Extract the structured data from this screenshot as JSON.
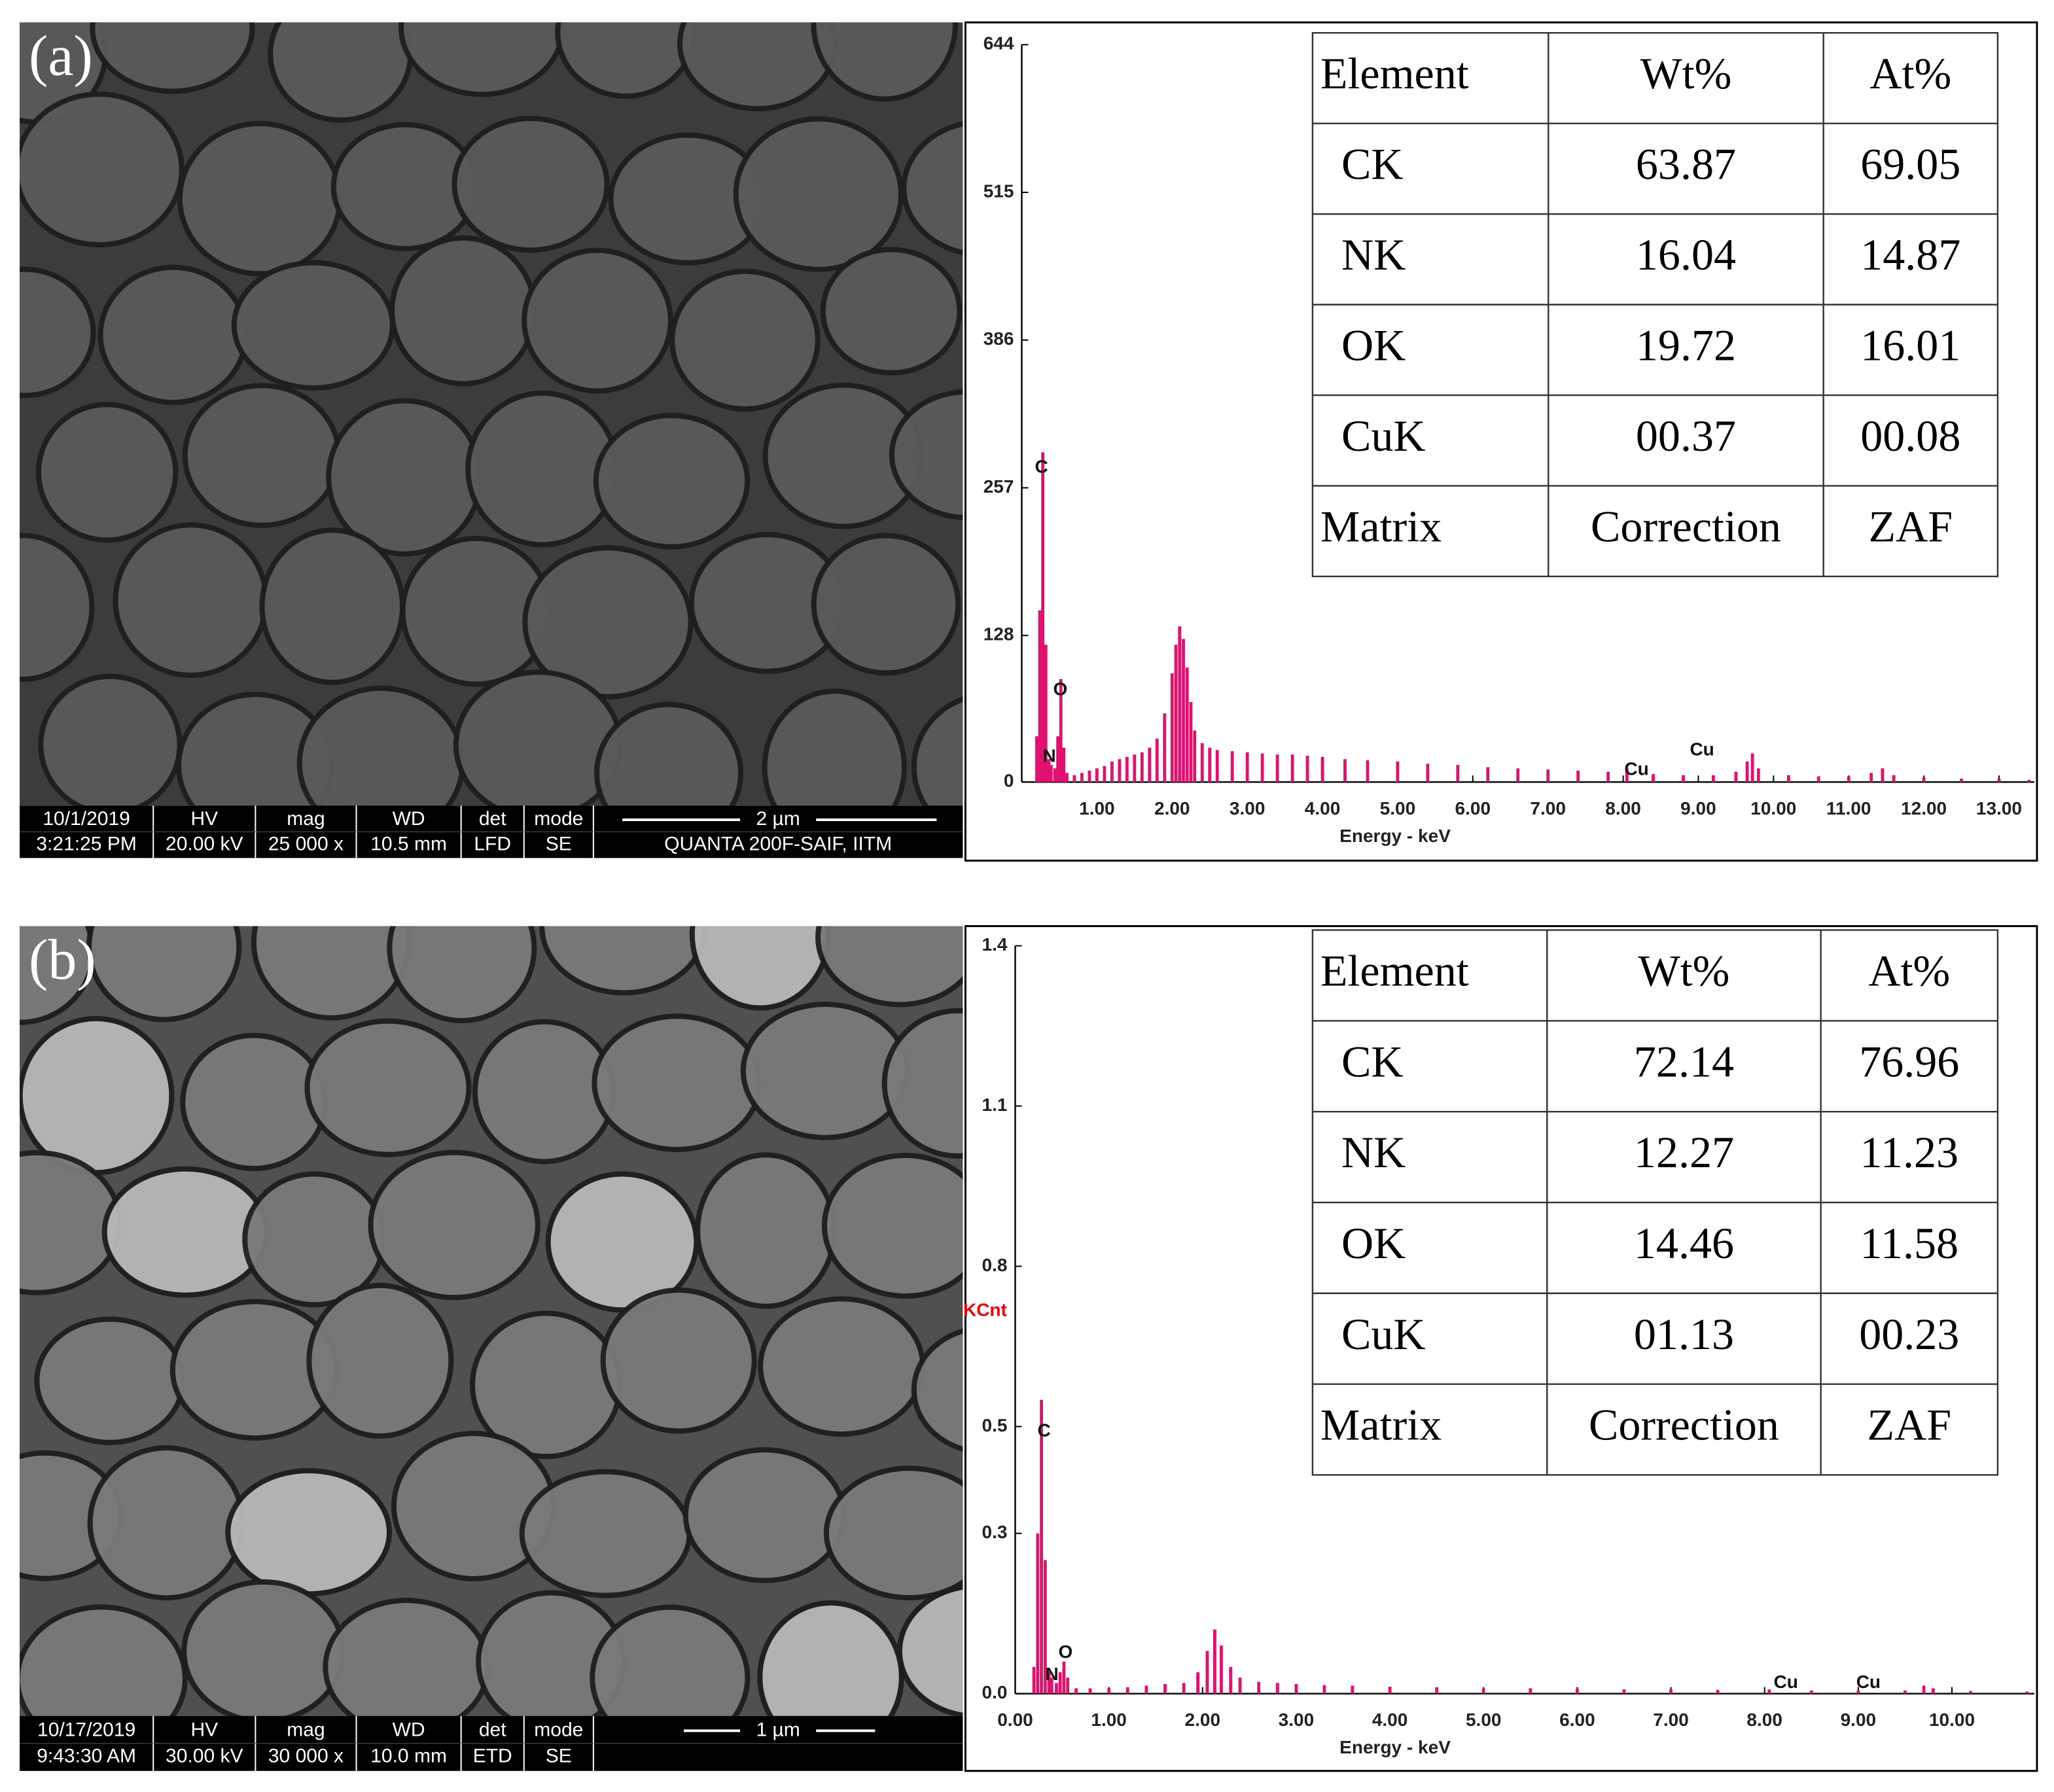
{
  "panels": [
    {
      "label": "(a)",
      "sem": {
        "date": "10/1/2019",
        "time": "3:21:25 PM",
        "headers": [
          "HV",
          "mag",
          "WD",
          "det",
          "mode"
        ],
        "values": [
          "20.00 kV",
          "25 000 x",
          "10.5 mm",
          "LFD",
          "SE"
        ],
        "scale_bar": "2 µm",
        "instrument": "QUANTA  200F-SAIF, IITM"
      },
      "table": {
        "header": [
          "Element",
          "Wt%",
          "At%"
        ],
        "rows": [
          [
            "CK",
            "63.87",
            "69.05"
          ],
          [
            "NK",
            "16.04",
            "14.87"
          ],
          [
            "OK",
            "19.72",
            "16.01"
          ],
          [
            "CuK",
            "00.37",
            "00.08"
          ],
          [
            "Matrix",
            "Correction",
            "ZAF"
          ]
        ]
      }
    },
    {
      "label": "(b)",
      "sem": {
        "date": "10/17/2019",
        "time": "9:43:30 AM",
        "headers": [
          "HV",
          "mag",
          "WD",
          "det",
          "mode"
        ],
        "values": [
          "30.00 kV",
          "30 000 x",
          "10.0 mm",
          "ETD",
          "SE"
        ],
        "scale_bar": "1 µm"
      },
      "table": {
        "header": [
          "Element",
          "Wt%",
          "At%"
        ],
        "rows": [
          [
            "CK",
            "72.14",
            "76.96"
          ],
          [
            "NK",
            "12.27",
            "11.23"
          ],
          [
            "OK",
            "14.46",
            "11.58"
          ],
          [
            "CuK",
            "01.13",
            "00.23"
          ],
          [
            "Matrix",
            "Correction",
            "ZAF"
          ]
        ]
      }
    }
  ],
  "chart_data": [
    {
      "type": "bar",
      "x_label": "Energy - keV",
      "color": "#e0116f",
      "x": [
        0.2,
        0.24,
        0.28,
        0.32,
        0.36,
        0.39,
        0.44,
        0.48,
        0.52,
        0.56,
        0.6,
        0.7,
        0.8,
        0.9,
        1.0,
        1.1,
        1.2,
        1.3,
        1.4,
        1.5,
        1.6,
        1.7,
        1.8,
        1.9,
        2.0,
        2.05,
        2.1,
        2.15,
        2.2,
        2.25,
        2.3,
        2.4,
        2.5,
        2.6,
        2.8,
        3.0,
        3.2,
        3.4,
        3.6,
        3.8,
        4.0,
        4.3,
        4.6,
        5.0,
        5.4,
        5.8,
        6.2,
        6.6,
        7.0,
        7.4,
        7.8,
        8.05,
        8.4,
        8.8,
        9.2,
        9.5,
        9.65,
        9.72,
        9.8,
        10.2,
        10.6,
        11.0,
        11.3,
        11.45,
        11.6,
        12.0,
        12.5,
        13.0,
        13.4
      ],
      "values": [
        40,
        150,
        288,
        120,
        20,
        15,
        12,
        40,
        90,
        30,
        8,
        6,
        8,
        10,
        12,
        14,
        18,
        20,
        22,
        24,
        26,
        30,
        38,
        60,
        95,
        120,
        136,
        125,
        100,
        70,
        45,
        34,
        30,
        28,
        27,
        26,
        25,
        24,
        24,
        23,
        22,
        20,
        19,
        18,
        16,
        15,
        13,
        12,
        11,
        10,
        9,
        12,
        7,
        6,
        6,
        9,
        18,
        25,
        12,
        6,
        5,
        5,
        8,
        12,
        6,
        4,
        3,
        3,
        2
      ],
      "xlim": [
        0,
        13.47
      ],
      "ylim": [
        0,
        644
      ],
      "xticks": [
        {
          "value": 1,
          "label": "1.00"
        },
        {
          "value": 2,
          "label": "2.00"
        },
        {
          "value": 3,
          "label": "3.00"
        },
        {
          "value": 4,
          "label": "4.00"
        },
        {
          "value": 5,
          "label": "5.00"
        },
        {
          "value": 6,
          "label": "6.00"
        },
        {
          "value": 7,
          "label": "7.00"
        },
        {
          "value": 8,
          "label": "8.00"
        },
        {
          "value": 9,
          "label": "9.00"
        },
        {
          "value": 10,
          "label": "10.00"
        },
        {
          "value": 11,
          "label": "11.00"
        },
        {
          "value": 12,
          "label": "12.00"
        },
        {
          "value": 13,
          "label": "13.00"
        }
      ],
      "yticks": [
        0,
        128,
        257,
        386,
        515,
        644
      ],
      "annotations": [
        "C",
        "N",
        "O",
        "Cu",
        "Cu"
      ]
    },
    {
      "type": "bar",
      "x_label": "Energy - keV",
      "y_label": "KCnt",
      "color": "#e0116f",
      "x": [
        0.2,
        0.24,
        0.28,
        0.32,
        0.36,
        0.39,
        0.44,
        0.48,
        0.52,
        0.56,
        0.65,
        0.8,
        1.0,
        1.2,
        1.4,
        1.6,
        1.8,
        1.95,
        2.05,
        2.13,
        2.2,
        2.3,
        2.4,
        2.6,
        2.8,
        3.0,
        3.3,
        3.6,
        4.0,
        4.5,
        5.0,
        5.5,
        6.0,
        6.5,
        7.0,
        7.5,
        8.05,
        8.5,
        9.0,
        9.5,
        9.7,
        9.8,
        10.2,
        10.8
      ],
      "values": [
        0.05,
        0.3,
        0.55,
        0.25,
        0.04,
        0.03,
        0.02,
        0.04,
        0.06,
        0.03,
        0.01,
        0.01,
        0.01,
        0.012,
        0.015,
        0.018,
        0.02,
        0.04,
        0.08,
        0.12,
        0.09,
        0.05,
        0.03,
        0.022,
        0.02,
        0.018,
        0.016,
        0.015,
        0.013,
        0.012,
        0.01,
        0.01,
        0.009,
        0.008,
        0.008,
        0.007,
        0.008,
        0.006,
        0.006,
        0.006,
        0.015,
        0.01,
        0.005,
        0.004
      ],
      "xlim": [
        0,
        10.88
      ],
      "ylim": [
        0,
        1.4
      ],
      "xticks": [
        {
          "value": 0,
          "label": "0.00"
        },
        {
          "value": 1,
          "label": "1.00"
        },
        {
          "value": 2,
          "label": "2.00"
        },
        {
          "value": 3,
          "label": "3.00"
        },
        {
          "value": 4,
          "label": "4.00"
        },
        {
          "value": 5,
          "label": "5.00"
        },
        {
          "value": 6,
          "label": "6.00"
        },
        {
          "value": 7,
          "label": "7.00"
        },
        {
          "value": 8,
          "label": "8.00"
        },
        {
          "value": 9,
          "label": "9.00"
        },
        {
          "value": 10,
          "label": "10.00"
        }
      ],
      "yticks": [
        {
          "value": 0,
          "label": "0.0"
        },
        0.3,
        0.5,
        0.8,
        1.1,
        1.4
      ],
      "annotations": [
        "C",
        "N",
        "O",
        "Cu",
        "Cu"
      ]
    }
  ]
}
